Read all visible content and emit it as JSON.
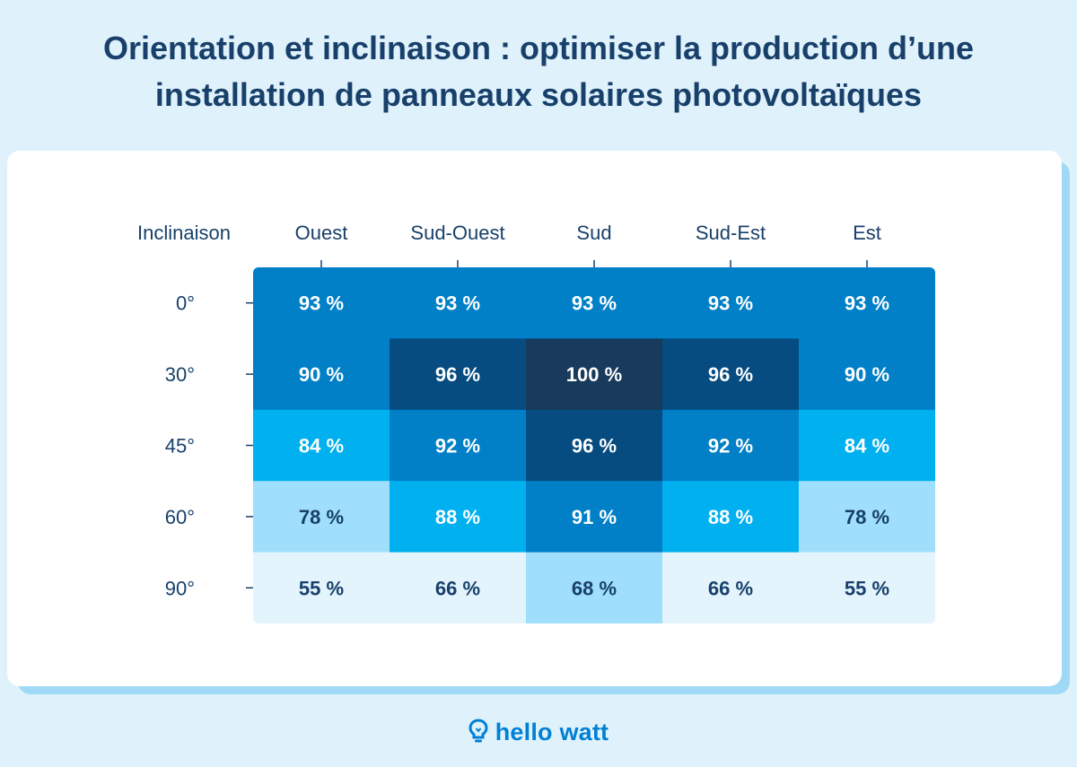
{
  "title_line1": "Orientation et inclinaison : optimiser la production d’une",
  "title_line2": "installation de panneaux solaires photovoltaïques",
  "brand": "hello watt",
  "colors": {
    "background": "#dff2fc",
    "brand": "#0180d4",
    "text": "#18406a",
    "scale": [
      "#e3f4fd",
      "#9fdffc",
      "#00b0ef",
      "#0180c7",
      "#064c80",
      "#183a5c"
    ]
  },
  "chart_data": {
    "type": "heatmap",
    "corner_label": "Inclinaison",
    "columns": [
      "Ouest",
      "Sud-Ouest",
      "Sud",
      "Sud-Est",
      "Est"
    ],
    "rows": [
      "0°",
      "30°",
      "45°",
      "60°",
      "90°"
    ],
    "values": [
      [
        93,
        93,
        93,
        93,
        93
      ],
      [
        90,
        96,
        100,
        96,
        90
      ],
      [
        84,
        92,
        96,
        92,
        84
      ],
      [
        78,
        88,
        91,
        88,
        78
      ],
      [
        55,
        66,
        68,
        66,
        55
      ]
    ],
    "cell_labels": [
      [
        "93 %",
        "93 %",
        "93 %",
        "93 %",
        "93 %"
      ],
      [
        "90 %",
        "96 %",
        "100 %",
        "96 %",
        "90 %"
      ],
      [
        "84 %",
        "92 %",
        "96 %",
        "92 %",
        "84 %"
      ],
      [
        "78 %",
        "88 %",
        "91 %",
        "88 %",
        "78 %"
      ],
      [
        "55 %",
        "66 %",
        "68 %",
        "66 %",
        "55 %"
      ]
    ],
    "unit": "%"
  }
}
